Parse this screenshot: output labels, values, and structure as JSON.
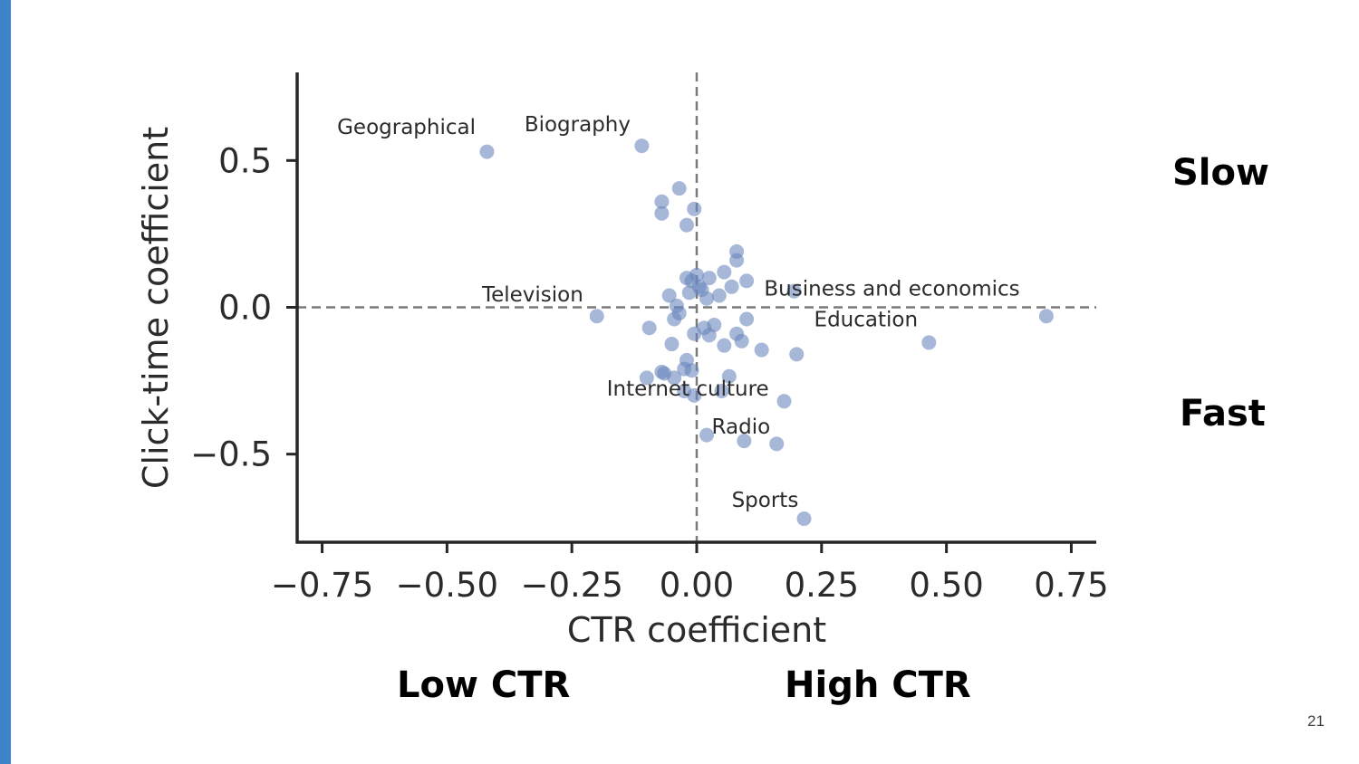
{
  "slide": {
    "accent_color": "#3d85c6",
    "page_number": "21",
    "notes": {
      "slow": "Slow",
      "fast": "Fast",
      "low_ctr": "Low CTR",
      "high_ctr": "High CTR"
    }
  },
  "chart_data": {
    "type": "scatter",
    "title": "",
    "xlabel": "CTR coefficient",
    "ylabel": "Click-time coefficient",
    "xlim": [
      -0.8,
      0.8
    ],
    "ylim": [
      -0.8,
      0.8
    ],
    "xticks": [
      -0.75,
      -0.5,
      -0.25,
      0.0,
      0.25,
      0.5,
      0.75
    ],
    "xtick_labels": [
      "−0.75",
      "−0.50",
      "−0.25",
      "0.00",
      "0.25",
      "0.50",
      "0.75"
    ],
    "yticks": [
      -0.5,
      0.0,
      0.5
    ],
    "ytick_labels": [
      "−0.5",
      "0.0",
      "0.5"
    ],
    "reference_lines": {
      "x": 0.0,
      "y": 0.0,
      "style": "dashed"
    },
    "point_color": "#6a87bd",
    "grid": false,
    "points": [
      {
        "x": -0.42,
        "y": 0.53
      },
      {
        "x": -0.11,
        "y": 0.55
      },
      {
        "x": -0.035,
        "y": 0.405
      },
      {
        "x": -0.07,
        "y": 0.36
      },
      {
        "x": -0.07,
        "y": 0.32
      },
      {
        "x": -0.005,
        "y": 0.335
      },
      {
        "x": -0.02,
        "y": 0.28
      },
      {
        "x": 0.08,
        "y": 0.19
      },
      {
        "x": 0.08,
        "y": 0.16
      },
      {
        "x": 0.055,
        "y": 0.12
      },
      {
        "x": 0.1,
        "y": 0.09
      },
      {
        "x": -0.02,
        "y": 0.1
      },
      {
        "x": 0.025,
        "y": 0.1
      },
      {
        "x": 0.0,
        "y": 0.11
      },
      {
        "x": 0.07,
        "y": 0.07
      },
      {
        "x": -0.01,
        "y": 0.09
      },
      {
        "x": 0.005,
        "y": 0.07
      },
      {
        "x": 0.01,
        "y": 0.06
      },
      {
        "x": -0.015,
        "y": 0.05
      },
      {
        "x": -0.055,
        "y": 0.04
      },
      {
        "x": 0.045,
        "y": 0.04
      },
      {
        "x": 0.02,
        "y": 0.03
      },
      {
        "x": 0.195,
        "y": 0.055
      },
      {
        "x": -0.04,
        "y": 0.005
      },
      {
        "x": -0.035,
        "y": -0.02
      },
      {
        "x": -0.045,
        "y": -0.04
      },
      {
        "x": -0.2,
        "y": -0.03
      },
      {
        "x": 0.7,
        "y": -0.03
      },
      {
        "x": 0.1,
        "y": -0.04
      },
      {
        "x": -0.095,
        "y": -0.07
      },
      {
        "x": 0.035,
        "y": -0.06
      },
      {
        "x": 0.015,
        "y": -0.07
      },
      {
        "x": -0.005,
        "y": -0.09
      },
      {
        "x": 0.025,
        "y": -0.095
      },
      {
        "x": 0.08,
        "y": -0.09
      },
      {
        "x": 0.09,
        "y": -0.115
      },
      {
        "x": -0.05,
        "y": -0.125
      },
      {
        "x": 0.055,
        "y": -0.13
      },
      {
        "x": 0.13,
        "y": -0.145
      },
      {
        "x": 0.2,
        "y": -0.16
      },
      {
        "x": 0.465,
        "y": -0.12
      },
      {
        "x": -0.02,
        "y": -0.18
      },
      {
        "x": -0.025,
        "y": -0.21
      },
      {
        "x": -0.01,
        "y": -0.215
      },
      {
        "x": -0.07,
        "y": -0.22
      },
      {
        "x": -0.065,
        "y": -0.225
      },
      {
        "x": -0.1,
        "y": -0.24
      },
      {
        "x": -0.045,
        "y": -0.24
      },
      {
        "x": 0.065,
        "y": -0.235
      },
      {
        "x": -0.025,
        "y": -0.285
      },
      {
        "x": 0.05,
        "y": -0.285
      },
      {
        "x": -0.005,
        "y": -0.3
      },
      {
        "x": 0.175,
        "y": -0.32
      },
      {
        "x": 0.02,
        "y": -0.435
      },
      {
        "x": 0.095,
        "y": -0.455
      },
      {
        "x": 0.16,
        "y": -0.465
      },
      {
        "x": 0.215,
        "y": -0.72
      }
    ],
    "annotations": [
      {
        "text": "Geographical",
        "x": -0.72,
        "y": 0.59
      },
      {
        "text": "Biography",
        "x": -0.345,
        "y": 0.6
      },
      {
        "text": "Television",
        "x": -0.43,
        "y": 0.02
      },
      {
        "text": "Business and economics",
        "x": 0.135,
        "y": 0.04
      },
      {
        "text": "Education",
        "x": 0.235,
        "y": -0.065
      },
      {
        "text": "Internet culture",
        "x": -0.18,
        "y": -0.3
      },
      {
        "text": "Radio",
        "x": 0.03,
        "y": -0.43
      },
      {
        "text": "Sports",
        "x": 0.07,
        "y": -0.68
      }
    ]
  }
}
